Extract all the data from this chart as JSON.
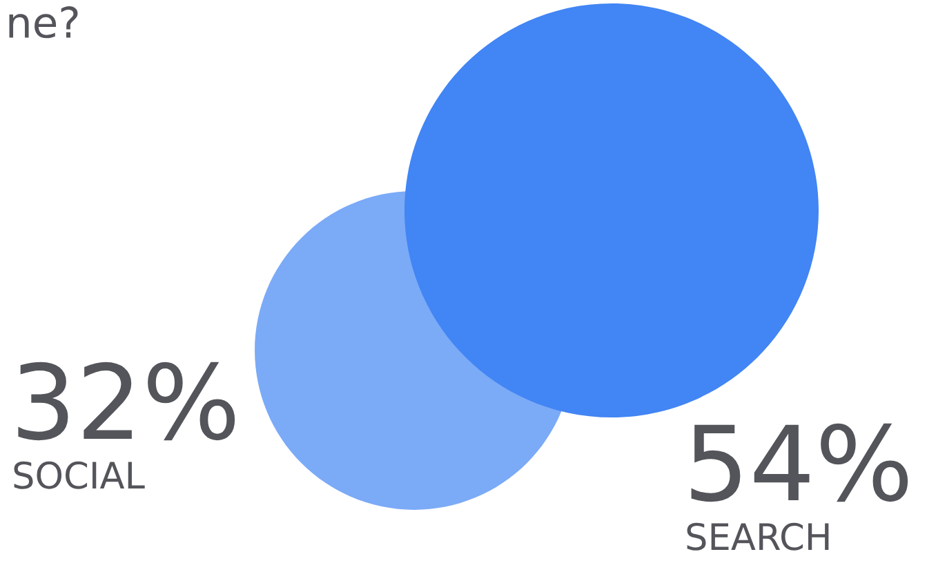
{
  "chart_data": {
    "type": "other",
    "title": "ne?",
    "categories": [
      "SOCIAL",
      "SEARCH"
    ],
    "values": [
      32,
      54
    ],
    "value_labels": [
      "32%",
      "54%"
    ],
    "colors": [
      "#7baaf7",
      "#4285f4"
    ]
  }
}
